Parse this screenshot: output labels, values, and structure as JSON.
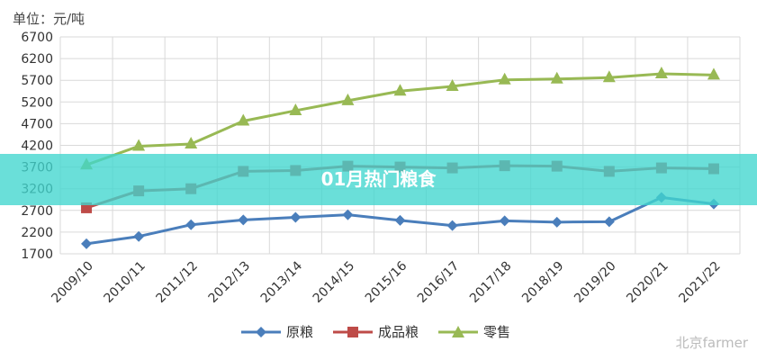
{
  "unit_label": "单位：元/吨",
  "banner_title": "01月热门粮食",
  "watermark": "北京farmer",
  "colors": {
    "raw": "#4a7ebb",
    "processed": "#be4b48",
    "retail": "#98b954",
    "grid": "#d9d9d9"
  },
  "chart_data": {
    "type": "line",
    "categories": [
      "2009/10",
      "2010/11",
      "2011/12",
      "2012/13",
      "2013/14",
      "2014/15",
      "2015/16",
      "2016/17",
      "2017/18",
      "2018/19",
      "2019/20",
      "2020/21",
      "2021/22"
    ],
    "yticks": [
      1700,
      2200,
      2700,
      3200,
      3700,
      4200,
      4700,
      5200,
      5700,
      6200,
      6700
    ],
    "ylim": [
      1700,
      6700
    ],
    "grid": true,
    "legend_position": "bottom",
    "series": [
      {
        "name": "原粮",
        "color_key": "raw",
        "marker": "diamond",
        "values": [
          1930,
          2100,
          2370,
          2480,
          2540,
          2600,
          2470,
          2350,
          2460,
          2430,
          2440,
          3000,
          2850
        ]
      },
      {
        "name": "成品粮",
        "color_key": "processed",
        "marker": "square",
        "values": [
          2760,
          3150,
          3200,
          3600,
          3620,
          3720,
          3700,
          3680,
          3730,
          3720,
          3600,
          3680,
          3660
        ]
      },
      {
        "name": "零售",
        "color_key": "retail",
        "marker": "triangle",
        "values": [
          3750,
          4180,
          4230,
          4760,
          5000,
          5230,
          5450,
          5560,
          5710,
          5730,
          5760,
          5850,
          5820
        ]
      }
    ]
  }
}
